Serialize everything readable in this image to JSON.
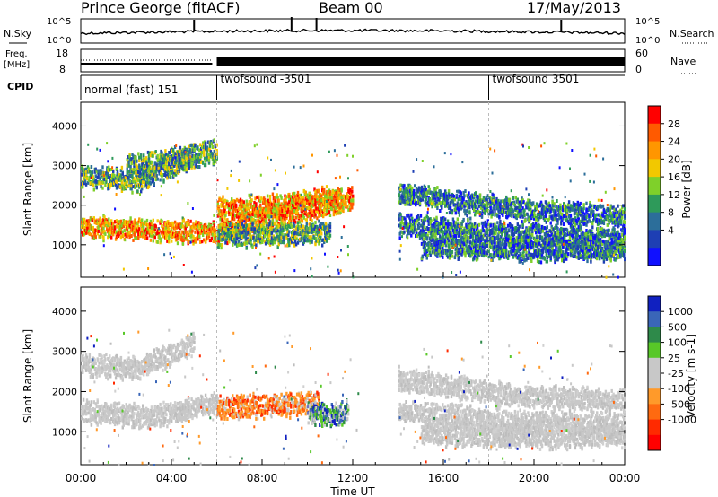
{
  "header": {
    "station": "Prince George (fitACF)",
    "beam": "Beam 00",
    "date": "17/May/2013"
  },
  "nsky_panel": {
    "left_label": "N.Sky",
    "right_label": "N.Search",
    "left_ticks": [
      "10^5",
      "10^0"
    ],
    "right_ticks": [
      "10^5",
      "10^0"
    ]
  },
  "freq_panel": {
    "left_label_line1": "Freq.",
    "left_label_line2": "[MHz]",
    "right_label": "Nave",
    "left_ticks": [
      "18",
      "8"
    ],
    "right_ticks": [
      "60",
      "0"
    ]
  },
  "cpid_panel": {
    "label": "CPID",
    "segments": [
      {
        "name": "normal (fast) 151",
        "start_hour": 0
      },
      {
        "name": "twofsound -3501",
        "start_hour": 6
      },
      {
        "name": "twofsound 3501",
        "start_hour": 18
      }
    ]
  },
  "chart_data": [
    {
      "type": "heatmap",
      "panel": "power",
      "ylabel": "Slant Range [km]",
      "xlabel": "",
      "x_range_hours": [
        0,
        24
      ],
      "ylim": [
        180,
        4600
      ],
      "yticks": [
        1000,
        2000,
        3000,
        4000
      ],
      "colorbar": {
        "label": "Power [dB]",
        "ticks": [
          "28",
          "24",
          "20",
          "16",
          "12",
          "8",
          "4"
        ],
        "colors": [
          "#ff0000",
          "#ff5a00",
          "#ff9600",
          "#f2c800",
          "#7fd02a",
          "#2e9a5a",
          "#2c6e9a",
          "#1e3fb4",
          "#1010ff"
        ]
      },
      "bands": [
        {
          "t0": 0.0,
          "t1": 12.0,
          "r0": 1450,
          "r1": 1300,
          "r_end": 2150,
          "level": "high"
        },
        {
          "t0": 0.0,
          "t1": 5.0,
          "r0": 2750,
          "r1": 2600,
          "r_end": 3250,
          "level": "mid"
        },
        {
          "t0": 2.0,
          "t1": 6.0,
          "r0": 3000,
          "r1": 3150,
          "r_end": 3350,
          "level": "mid"
        },
        {
          "t0": 6.0,
          "t1": 11.5,
          "r0": 1900,
          "r1": 2000,
          "r_end": 2200,
          "level": "high"
        },
        {
          "t0": 6.0,
          "t1": 11.0,
          "r0": 1200,
          "r1": 1250,
          "r_end": 1300,
          "level": "mid"
        },
        {
          "t0": 14.0,
          "t1": 24.0,
          "r0": 2300,
          "r1": 1900,
          "r_end": 1700,
          "level": "low"
        },
        {
          "t0": 14.0,
          "t1": 24.0,
          "r0": 1500,
          "r1": 1250,
          "r_end": 1150,
          "level": "low"
        },
        {
          "t0": 15.0,
          "t1": 24.0,
          "r0": 950,
          "r1": 850,
          "r_end": 900,
          "level": "low"
        }
      ]
    },
    {
      "type": "heatmap",
      "panel": "velocity",
      "ylabel": "Slant Range [km]",
      "xlabel": "Time UT",
      "x_range_hours": [
        0,
        24
      ],
      "ylim": [
        180,
        4600
      ],
      "yticks": [
        1000,
        2000,
        3000,
        4000
      ],
      "xticks": [
        "00:00",
        "04:00",
        "08:00",
        "12:00",
        "16:00",
        "20:00",
        "00:00"
      ],
      "colorbar": {
        "label": "Velocity [m s-1]",
        "ticks": [
          "1000",
          "500",
          "100",
          "25",
          "-25",
          "-100",
          "-500",
          "-1000"
        ],
        "colors": [
          "#1020c0",
          "#3a66b8",
          "#2e8a4a",
          "#58c828",
          "#c8c8c8",
          "#c8c8c8",
          "#ff9a2a",
          "#ff6a10",
          "#ff2a00",
          "#ff0000"
        ]
      },
      "bands": [
        {
          "t0": 0.0,
          "t1": 6.0,
          "r0": 1500,
          "r1": 1350,
          "r_end": 1700,
          "level": "ground"
        },
        {
          "t0": 0.0,
          "t1": 5.0,
          "r0": 2700,
          "r1": 2550,
          "r_end": 3200,
          "level": "ground"
        },
        {
          "t0": 6.0,
          "t1": 10.5,
          "r0": 1600,
          "r1": 1650,
          "r_end": 1700,
          "level": "neg"
        },
        {
          "t0": 10.0,
          "t1": 11.8,
          "r0": 1500,
          "r1": 1400,
          "r_end": 1500,
          "level": "pos"
        },
        {
          "t0": 14.0,
          "t1": 24.0,
          "r0": 2300,
          "r1": 1900,
          "r_end": 1750,
          "level": "ground"
        },
        {
          "t0": 14.0,
          "t1": 24.0,
          "r0": 1500,
          "r1": 1250,
          "r_end": 1150,
          "level": "ground"
        },
        {
          "t0": 15.0,
          "t1": 24.0,
          "r0": 950,
          "r1": 850,
          "r_end": 900,
          "level": "ground"
        }
      ]
    }
  ]
}
